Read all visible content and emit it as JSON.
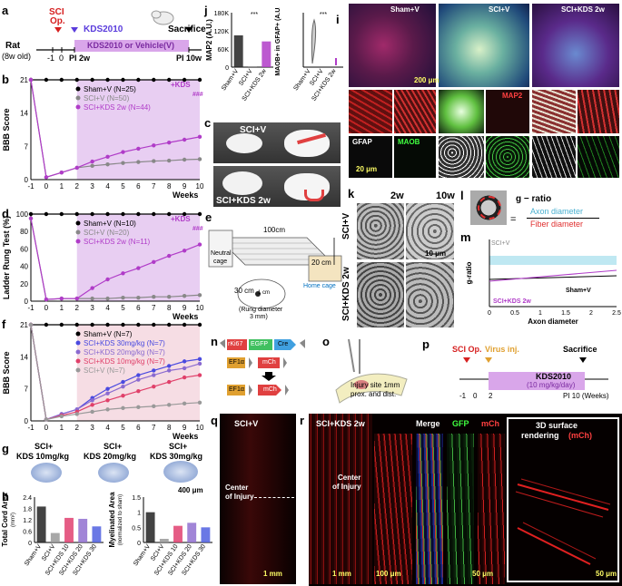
{
  "panels": {
    "a": {
      "letter": "a",
      "sci_op": "SCI",
      "sci_op2": "Op.",
      "kds_start": "KDS2010",
      "kds_start2": "PI 2w",
      "sacrifice": "Sacrifice",
      "sacrifice2": "PI 10w",
      "rat": "Rat",
      "rat_age": "(8w old)",
      "treatment_bar": "KDS2010 or Vehicle(V)",
      "ticks": [
        "-1",
        "0",
        "PI 2w",
        "PI 10w"
      ]
    },
    "b": {
      "letter": "b",
      "ylabel": "BBB Score",
      "xlabel": "Weeks",
      "legend": [
        "Sham+V (N=25)",
        "SCI+V (N=50)",
        "SCI+KDS 2w (N=44)"
      ],
      "annot_kds": "+KDS",
      "sig": "###"
    },
    "c": {
      "letter": "c",
      "label_top": "SCI+V",
      "label_bottom": "SCI+KDS 2w"
    },
    "d": {
      "letter": "d",
      "ylabel": "Ladder Rung Test (%)",
      "xlabel": "Weeks",
      "legend": [
        "Sham+V (N=10)",
        "SCI+V (N=20)",
        "SCI+KDS 2w (N=11)"
      ],
      "annot_kds": "+KDS",
      "sig": "###"
    },
    "e": {
      "letter": "e",
      "len": "100cm",
      "height": "20 cm",
      "depth": "30 cm",
      "neutral": "Neutral",
      "neutral2": "cage",
      "home": "Home cage",
      "rung": "(Rung diameter",
      "rung2": "3 mm)",
      "one_cm": "1 cm"
    },
    "f": {
      "letter": "f",
      "ylabel": "BBB Score",
      "xlabel": "Weeks",
      "legend": [
        "Sham+V (N=7)",
        "SCI+KDS 30mg/kg (N=7)",
        "SCI+KDS 20mg/kg (N=7)",
        "SCI+KDS 10mg/kg (N=7)",
        "SCI+V (N=7)"
      ]
    },
    "g": {
      "letter": "g",
      "labels": [
        "SCI+",
        "KDS 10mg/kg",
        "SCI+",
        "KDS 20mg/kg",
        "SCI+",
        "KDS 30mg/kg"
      ],
      "scale": "400 μm"
    },
    "h": {
      "letter": "h",
      "ylabel1": "Total Cord Area",
      "unit1": "(mm²)",
      "ylabel2": "Myelinated Area",
      "unit2": "(normalized to sham)",
      "groups": [
        "Sham+V",
        "SCI+V",
        "SCI+KDS 10",
        "SCI+KDS 20",
        "SCI+KDS 30"
      ]
    },
    "i": {
      "letter": "i",
      "titles": [
        "Sham+V",
        "SCI+V",
        "SCI+KDS 2w"
      ],
      "scale": "200 μm",
      "scale2": "20 μm",
      "markers": [
        "GFAP",
        "MAOB",
        "MAP2"
      ]
    },
    "j": {
      "letter": "j",
      "ylabel1": "MAP2 (A.U.)",
      "ylabel2": "MAOB+ in GFAP+ (A.U.)",
      "groups": [
        "Sham+V",
        "SCI+V",
        "SCI+KDS 2w"
      ],
      "sig": "***"
    },
    "k": {
      "letter": "k",
      "cols": [
        "2w",
        "10w"
      ],
      "rows": [
        "SCI+V",
        "SCI+KDS 2w"
      ],
      "scale": "10 μm"
    },
    "l": {
      "letter": "l",
      "g_ratio": "g − ratio",
      "eq": "=",
      "axon": "Axon diameter",
      "fiber": "Fiber diameter"
    },
    "m": {
      "letter": "m",
      "xlabel": "Axon diameter",
      "ylabel": "g-ratio",
      "sci_v": "SCI+V",
      "sham": "Sham+V",
      "kds": "SCI+KDS 2w"
    },
    "n": {
      "letter": "n",
      "c1": "rKi67",
      "c2": "EGFP",
      "c3": "Cre",
      "c4": "EF1α",
      "c5": "mCh",
      "c6": "EF1α",
      "c7": "mCh"
    },
    "o": {
      "letter": "o",
      "text1": "Injury site 1mm",
      "text2": "prox. and dist."
    },
    "p": {
      "letter": "p",
      "sci_op": "SCI Op.",
      "virus": "Virus inj.",
      "sacrifice": "Sacrifice",
      "bar": "KDS2010",
      "bar2": "(10 mg/kg/day)",
      "ticks": [
        "-1",
        "0",
        "2"
      ],
      "end": "PI 10 (Weeks)"
    },
    "q": {
      "letter": "q",
      "title": "SCI+V",
      "center": "Center",
      "center2": "of Injury",
      "scale": "1 mm"
    },
    "r": {
      "letter": "r",
      "title": "SCI+KDS 2w",
      "center": "Center",
      "center2": "of Injury",
      "scale1": "1 mm",
      "scale2": "100 μm",
      "scale3": "50 μm",
      "merge": "Merge",
      "gfp": "GFP",
      "mch": "mCh",
      "render": "3D surface",
      "render2": "rendering",
      "render3": "(mCh)",
      "scale4": "50 μm"
    }
  },
  "chart_data": [
    {
      "panel": "b",
      "type": "line",
      "x": [
        -1,
        0,
        1,
        2,
        3,
        4,
        5,
        6,
        7,
        8,
        9,
        10
      ],
      "xlabel": "Weeks",
      "ylabel": "BBB Score",
      "ylim": [
        0,
        21
      ],
      "yticks": [
        0,
        7,
        14,
        21
      ],
      "series": [
        {
          "name": "Sham+V (N=25)",
          "color": "#000000",
          "values": [
            21,
            21,
            21,
            21,
            21,
            21,
            21,
            21,
            21,
            21,
            21,
            21
          ]
        },
        {
          "name": "SCI+V (N=50)",
          "color": "#888888",
          "values": [
            21,
            0.5,
            1.5,
            2.5,
            2.9,
            3.2,
            3.5,
            3.7,
            3.9,
            4.0,
            4.2,
            4.3
          ]
        },
        {
          "name": "SCI+KDS 2w (N=44)",
          "color": "#b03cc8",
          "values": [
            21,
            0.5,
            1.5,
            2.5,
            3.8,
            4.8,
            5.8,
            6.5,
            7.2,
            7.8,
            8.4,
            9.0
          ]
        }
      ]
    },
    {
      "panel": "d",
      "type": "line",
      "x": [
        -1,
        0,
        1,
        2,
        3,
        4,
        5,
        6,
        7,
        8,
        9,
        10
      ],
      "xlabel": "Weeks",
      "ylabel": "Ladder Rung Test (%)",
      "ylim": [
        0,
        100
      ],
      "yticks": [
        0,
        20,
        40,
        60,
        80,
        100
      ],
      "series": [
        {
          "name": "Sham+V (N=10)",
          "color": "#000000",
          "values": [
            100,
            100,
            100,
            100,
            100,
            100,
            100,
            100,
            100,
            100,
            100,
            100
          ]
        },
        {
          "name": "SCI+V (N=20)",
          "color": "#888888",
          "values": [
            95,
            2,
            3,
            3,
            3,
            3,
            4,
            4,
            5,
            5,
            6,
            7
          ]
        },
        {
          "name": "SCI+KDS 2w (N=11)",
          "color": "#b03cc8",
          "values": [
            95,
            2,
            3,
            3,
            15,
            25,
            32,
            38,
            45,
            52,
            58,
            65
          ]
        }
      ]
    },
    {
      "panel": "f",
      "type": "line",
      "x": [
        -1,
        0,
        1,
        2,
        3,
        4,
        5,
        6,
        7,
        8,
        9,
        10
      ],
      "xlabel": "Weeks",
      "ylabel": "BBB Score",
      "ylim": [
        0,
        21
      ],
      "yticks": [
        0,
        7,
        14,
        21
      ],
      "series": [
        {
          "name": "Sham+V (N=7)",
          "color": "#000000",
          "values": [
            21,
            21,
            21,
            21,
            21,
            21,
            21,
            21,
            21,
            21,
            21,
            21
          ]
        },
        {
          "name": "SCI+KDS 30mg/kg (N=7)",
          "color": "#4a4ae0",
          "values": [
            21,
            0.3,
            1.5,
            2.5,
            5.0,
            7.0,
            8.5,
            10,
            11,
            12,
            13,
            13.5
          ]
        },
        {
          "name": "SCI+KDS 20mg/kg (N=7)",
          "color": "#8a6ad0",
          "values": [
            21,
            0.3,
            1.5,
            2.5,
            4.5,
            6.0,
            7.5,
            9,
            10,
            11,
            11.5,
            12.5
          ]
        },
        {
          "name": "SCI+KDS 10mg/kg (N=7)",
          "color": "#e0406a",
          "values": [
            21,
            0.3,
            1.2,
            2.0,
            3.5,
            4.5,
            5.5,
            6.5,
            7.5,
            8.5,
            9.5,
            10
          ]
        },
        {
          "name": "SCI+V (N=7)",
          "color": "#999999",
          "values": [
            21,
            0.3,
            1.0,
            1.5,
            2.0,
            2.5,
            2.8,
            3.0,
            3.2,
            3.5,
            3.8,
            4.0
          ]
        }
      ]
    },
    {
      "panel": "h1",
      "type": "bar",
      "categories": [
        "Sham+V",
        "SCI+V",
        "SCI+KDS 10",
        "SCI+KDS 20",
        "SCI+KDS 30"
      ],
      "values": [
        1.9,
        0.5,
        1.3,
        1.25,
        0.85
      ],
      "colors": [
        "#222222",
        "#999999",
        "#e04070",
        "#9070d0",
        "#5060e0"
      ],
      "ylabel": "Total Cord Area (mm²)",
      "ylim": [
        0,
        2.4
      ],
      "yticks": [
        0,
        0.6,
        1.2,
        1.8,
        2.4
      ]
    },
    {
      "panel": "h2",
      "type": "bar",
      "categories": [
        "Sham+V",
        "SCI+V",
        "SCI+KDS 10",
        "SCI+KDS 20",
        "SCI+KDS 30"
      ],
      "values": [
        1.0,
        0.12,
        0.55,
        0.65,
        0.5
      ],
      "colors": [
        "#222222",
        "#999999",
        "#e04070",
        "#9070d0",
        "#5060e0"
      ],
      "ylabel": "Myelinated Area (normalized to sham)",
      "ylim": [
        0,
        1.5
      ],
      "yticks": [
        0,
        0.5,
        1.0,
        1.5
      ]
    },
    {
      "panel": "j1",
      "type": "bar",
      "categories": [
        "Sham+V",
        "SCI+V",
        "SCI+KDS 2w"
      ],
      "values": [
        105000,
        3000,
        85000
      ],
      "colors": [
        "#222222",
        "#999999",
        "#b03cc8"
      ],
      "ylabel": "MAP2 (A.U.)",
      "ylim": [
        0,
        180000
      ],
      "yticks": [
        "0",
        "60K",
        "120K",
        "180K"
      ]
    },
    {
      "panel": "m",
      "type": "scatter",
      "xlabel": "Axon diameter",
      "ylabel": "g-ratio",
      "xlim": [
        0,
        2.5
      ],
      "xticks": [
        0,
        0.5,
        1,
        1.5,
        2,
        2.5
      ]
    }
  ]
}
